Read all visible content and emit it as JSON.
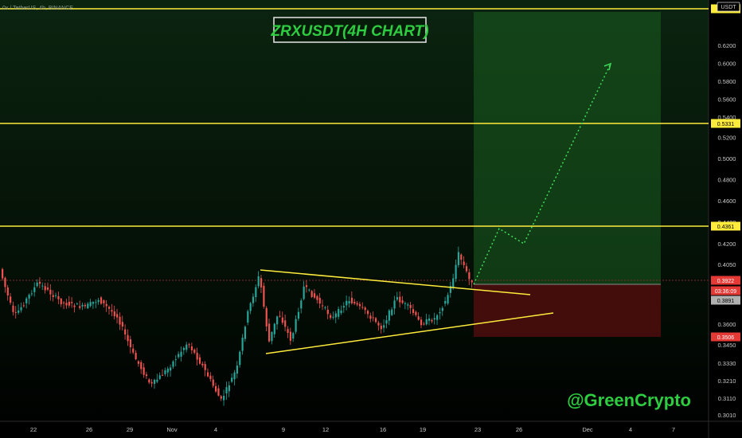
{
  "header": {
    "symbol_line": "0x / TetherUS, 4h, BINANCE",
    "chart_title": "ZRXUSDT(4H CHART)",
    "currency": "USDT",
    "watermark": "@GreenCrypto"
  },
  "chart_data": {
    "type": "candlestick",
    "y_axis": {
      "ticks": [
        0.62,
        0.6,
        0.58,
        0.56,
        0.54,
        0.52,
        0.5,
        0.48,
        0.46,
        0.44,
        0.42,
        0.405,
        0.36,
        0.345,
        0.333,
        0.321,
        0.311,
        0.301
      ],
      "labels": [
        "0.6200",
        "0.6000",
        "0.5800",
        "0.5600",
        "0.5400",
        "0.5200",
        "0.5000",
        "0.4800",
        "0.4600",
        "0.4400",
        "0.4200",
        "0.4050",
        "0.3600",
        "0.3450",
        "0.3330",
        "0.3210",
        "0.3110",
        "0.3010"
      ]
    },
    "x_axis": {
      "labels": [
        "22",
        "26",
        "29",
        "Nov",
        "4",
        "9",
        "12",
        "16",
        "19",
        "23",
        "26",
        "Dec",
        "4",
        "7"
      ]
    },
    "price_tags": [
      {
        "label": "0.6633",
        "kind": "resistance"
      },
      {
        "label": "0.5331",
        "kind": "resistance"
      },
      {
        "label": "0.4361",
        "kind": "resistance"
      },
      {
        "label": "0.3922",
        "kind": "last"
      },
      {
        "label": "03:36:09",
        "kind": "countdown"
      },
      {
        "label": "0.3891",
        "kind": "entry"
      },
      {
        "label": "0.3506",
        "kind": "stop"
      }
    ],
    "resistance_levels": [
      0.6633,
      0.5331,
      0.4361
    ],
    "position": {
      "entry": 0.3891,
      "target": 0.6633,
      "stop": 0.3506
    },
    "projection": [
      0.3922,
      0.436,
      0.421,
      0.6
    ],
    "pattern": "symmetrical triangle",
    "colors": {
      "up": "#26a69a",
      "down": "#ef5350",
      "level": "#ffeb3b",
      "profit": "#1b5e20",
      "loss": "#4a0d0d",
      "text_green": "#2ecc40"
    }
  }
}
